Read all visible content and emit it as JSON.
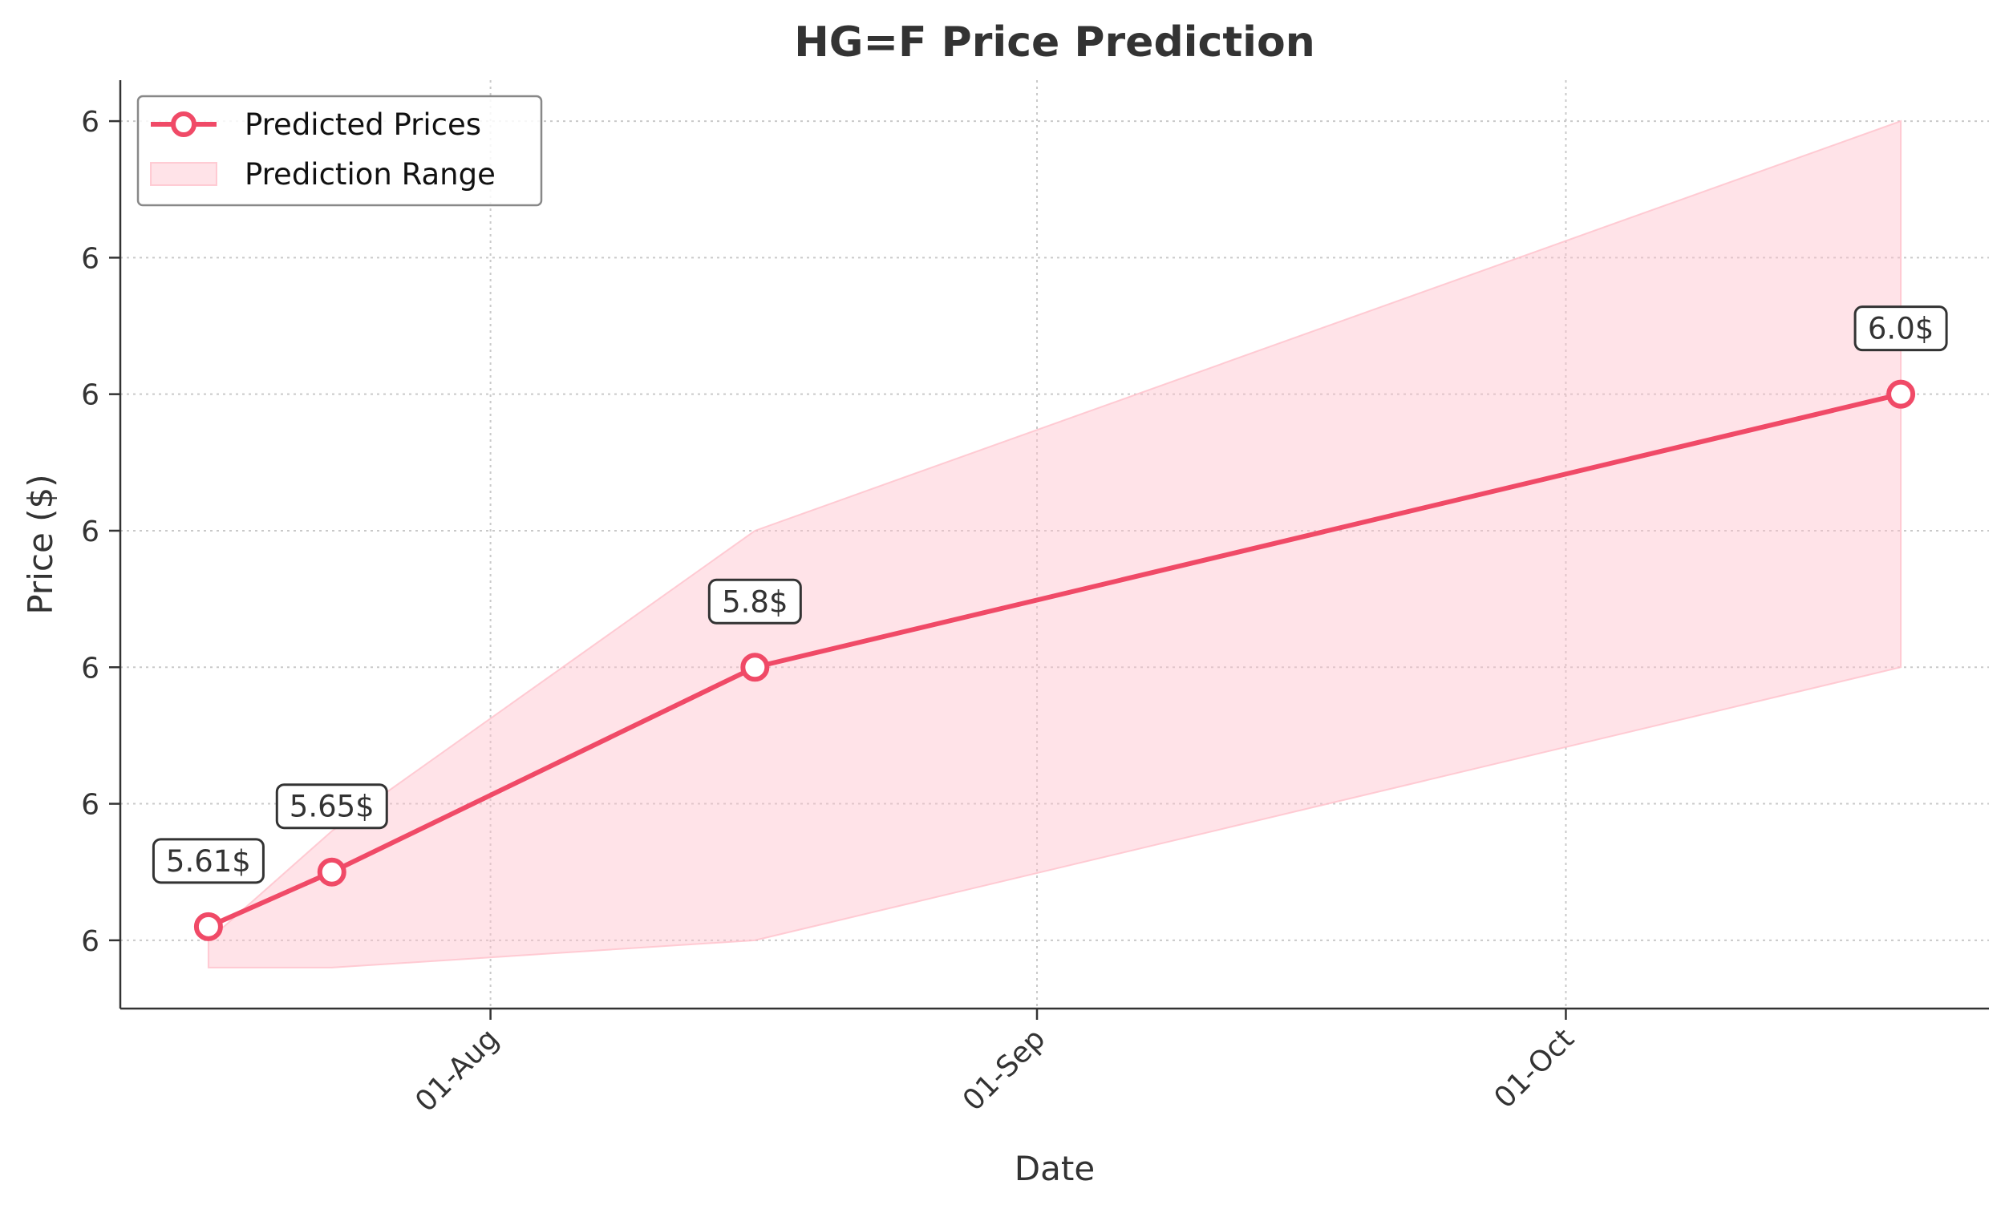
{
  "chart_data": {
    "type": "line",
    "title": "HG=F Price Prediction",
    "xlabel": "Date",
    "ylabel": "Price ($)",
    "x_ticks": [
      {
        "date": "2024-08-01",
        "label": "01-Aug"
      },
      {
        "date": "2024-09-01",
        "label": "01-Sep"
      },
      {
        "date": "2024-10-01",
        "label": "01-Oct"
      }
    ],
    "y_ticks": [
      {
        "value": 5.6,
        "label": "6"
      },
      {
        "value": 5.7,
        "label": "6"
      },
      {
        "value": 5.8,
        "label": "6"
      },
      {
        "value": 5.9,
        "label": "6"
      },
      {
        "value": 6.0,
        "label": "6"
      },
      {
        "value": 6.1,
        "label": "6"
      },
      {
        "value": 6.2,
        "label": "6"
      }
    ],
    "xlim": [
      "2024-07-11",
      "2024-10-25"
    ],
    "ylim": [
      5.55,
      6.23
    ],
    "grid": true,
    "legend_position": "top-left",
    "series": [
      {
        "name": "Predicted Prices",
        "color": "#f04a67",
        "points": [
          {
            "x": "2024-07-16",
            "y": 5.61,
            "label": "5.61$"
          },
          {
            "x": "2024-07-23",
            "y": 5.65,
            "label": "5.65$"
          },
          {
            "x": "2024-08-16",
            "y": 5.8,
            "label": "5.8$"
          },
          {
            "x": "2024-10-20",
            "y": 6.0,
            "label": "6.0$"
          }
        ]
      }
    ],
    "band": {
      "name": "Prediction Range",
      "color": "#ffc0cb",
      "points": [
        {
          "x": "2024-07-16",
          "low": 5.58,
          "high": 5.6
        },
        {
          "x": "2024-07-23",
          "low": 5.58,
          "high": 5.68
        },
        {
          "x": "2024-08-16",
          "low": 5.6,
          "high": 5.9
        },
        {
          "x": "2024-10-20",
          "low": 5.8,
          "high": 6.2
        }
      ]
    }
  }
}
